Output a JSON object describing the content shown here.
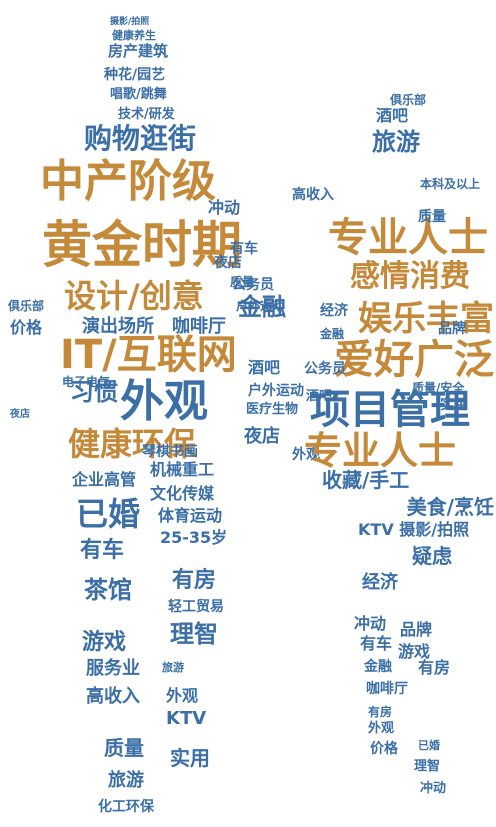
{
  "words": [
    {
      "text": "黄金时期",
      "color": "#c48a3a"
    },
    {
      "text": "中产阶级",
      "color": "#c48a3a"
    },
    {
      "text": "IT/互联网",
      "color": "#c48a3a"
    },
    {
      "text": "设计/创意",
      "color": "#c48a3a"
    },
    {
      "text": "健康环保",
      "color": "#c48a3a"
    },
    {
      "text": "外观",
      "color": "#3b6fa6"
    },
    {
      "text": "购物逛街",
      "color": "#3b6fa6"
    },
    {
      "text": "已婚",
      "color": "#3b6fa6"
    },
    {
      "text": "演出场所",
      "color": "#3b6fa6"
    },
    {
      "text": "咖啡厅",
      "color": "#3b6fa6"
    },
    {
      "text": "金融",
      "color": "#3b6fa6"
    },
    {
      "text": "习惯",
      "color": "#3b6fa6"
    },
    {
      "text": "有车",
      "color": "#3b6fa6"
    },
    {
      "text": "茶馆",
      "color": "#3b6fa6"
    },
    {
      "text": "有房",
      "color": "#3b6fa6"
    },
    {
      "text": "理智",
      "color": "#3b6fa6"
    },
    {
      "text": "游戏",
      "color": "#3b6fa6"
    },
    {
      "text": "企业高管",
      "color": "#3b6fa6"
    },
    {
      "text": "机械重工",
      "color": "#3b6fa6"
    },
    {
      "text": "文化传媒",
      "color": "#3b6fa6"
    },
    {
      "text": "体育运动",
      "color": "#3b6fa6"
    },
    {
      "text": "25-35岁",
      "color": "#3b6fa6"
    },
    {
      "text": "轻工贸易",
      "color": "#3b6fa6"
    },
    {
      "text": "服务业",
      "color": "#3b6fa6"
    },
    {
      "text": "高收入",
      "color": "#3b6fa6"
    },
    {
      "text": "外观",
      "color": "#3b6fa6"
    },
    {
      "text": "KTV",
      "color": "#3b6fa6"
    },
    {
      "text": "质量",
      "color": "#3b6fa6"
    },
    {
      "text": "实用",
      "color": "#3b6fa6"
    },
    {
      "text": "旅游",
      "color": "#3b6fa6"
    },
    {
      "text": "化工环保",
      "color": "#3b6fa6"
    },
    {
      "text": "房产建筑",
      "color": "#3b6fa6"
    },
    {
      "text": "种花/园艺",
      "color": "#3b6fa6"
    },
    {
      "text": "唱歌/跳舞",
      "color": "#3b6fa6"
    },
    {
      "text": "技术/研发",
      "color": "#3b6fa6"
    },
    {
      "text": "健康养生",
      "color": "#3b6fa6"
    },
    {
      "text": "摄影/拍照",
      "color": "#3b6fa6"
    },
    {
      "text": "电子电气",
      "color": "#3b6fa6"
    },
    {
      "text": "价格",
      "color": "#3b6fa6"
    },
    {
      "text": "俱乐部",
      "color": "#3b6fa6"
    },
    {
      "text": "公务员",
      "color": "#3b6fa6"
    },
    {
      "text": "琴棋书画",
      "color": "#3b6fa6"
    },
    {
      "text": "夜店",
      "color": "#3b6fa6"
    },
    {
      "text": "户外运动",
      "color": "#3b6fa6"
    },
    {
      "text": "医疗生物",
      "color": "#3b6fa6"
    },
    {
      "text": "酒吧",
      "color": "#3b6fa6"
    },
    {
      "text": "夜店",
      "color": "#3b6fa6"
    },
    {
      "text": "专业人士",
      "color": "#c48a3a"
    },
    {
      "text": "感情消费",
      "color": "#c48a3a"
    },
    {
      "text": "娱乐丰富",
      "color": "#c48a3a"
    },
    {
      "text": "爱好广泛",
      "color": "#c48a3a"
    },
    {
      "text": "旅游",
      "color": "#3b6fa6"
    },
    {
      "text": "酒吧",
      "color": "#3b6fa6"
    },
    {
      "text": "俱乐部",
      "color": "#3b6fa6"
    },
    {
      "text": "收藏/手工",
      "color": "#3b6fa6"
    },
    {
      "text": "美食/烹饪",
      "color": "#3b6fa6"
    },
    {
      "text": "KTV 摄影/拍照",
      "color": "#3b6fa6"
    },
    {
      "text": "疑虑",
      "color": "#3b6fa6"
    },
    {
      "text": "经济",
      "color": "#3b6fa6"
    },
    {
      "text": "冲动",
      "color": "#3b6fa6"
    },
    {
      "text": "品牌",
      "color": "#3b6fa6"
    },
    {
      "text": "游戏",
      "color": "#3b6fa6"
    },
    {
      "text": "有车",
      "color": "#3b6fa6"
    },
    {
      "text": "有房",
      "color": "#3b6fa6"
    },
    {
      "text": "金融",
      "color": "#3b6fa6"
    },
    {
      "text": "咖啡厅",
      "color": "#3b6fa6"
    },
    {
      "text": "有房",
      "color": "#3b6fa6"
    },
    {
      "text": "外观",
      "color": "#3b6fa6"
    },
    {
      "text": "价格",
      "color": "#3b6fa6"
    },
    {
      "text": "已婚",
      "color": "#3b6fa6"
    },
    {
      "text": "冲动",
      "color": "#3b6fa6"
    },
    {
      "text": "理智",
      "color": "#3b6fa6"
    },
    {
      "text": "旅游",
      "color": "#3b6fa6"
    },
    {
      "text": "品牌",
      "color": "#3b6fa6"
    },
    {
      "text": "质量/安全",
      "color": "#3b6fa6"
    },
    {
      "text": "高收入",
      "color": "#3b6fa6"
    },
    {
      "text": "户外运动",
      "color": "#3b6fa6"
    },
    {
      "text": "外观",
      "color": "#3b6fa6"
    },
    {
      "text": "金融",
      "color": "#3b6fa6"
    },
    {
      "text": "实用",
      "color": "#3b6fa6"
    },
    {
      "text": "夜店",
      "color": "#3b6fa6"
    },
    {
      "text": "质量",
      "color": "#3b6fa6"
    },
    {
      "text": "有车",
      "color": "#3b6fa6"
    },
    {
      "text": "公务员",
      "color": "#3b6fa6"
    },
    {
      "text": "冲动",
      "color": "#3b6fa6"
    },
    {
      "text": "经济",
      "color": "#3b6fa6"
    },
    {
      "text": "质量",
      "color": "#3b6fa6"
    },
    {
      "text": "酒吧",
      "color": "#3b6fa6"
    },
    {
      "text": "本科及以上",
      "color": "#3b6fa6"
    },
    {
      "text": "项目管理",
      "color": "#3b6fa6"
    },
    {
      "text": "专业人士",
      "color": "#c48a3a"
    },
    {
      "text": "娱乐丰富",
      "color": "#c48a3a"
    },
    {
      "text": "爱好广泛",
      "color": "#c48a3a"
    },
    {
      "text": "设计/创意",
      "color": "#c48a3a"
    },
    {
      "text": "黄金时期",
      "color": "#c48a3a"
    },
    {
      "text": "中产阶级",
      "color": "#c48a3a"
    }
  ]
}
